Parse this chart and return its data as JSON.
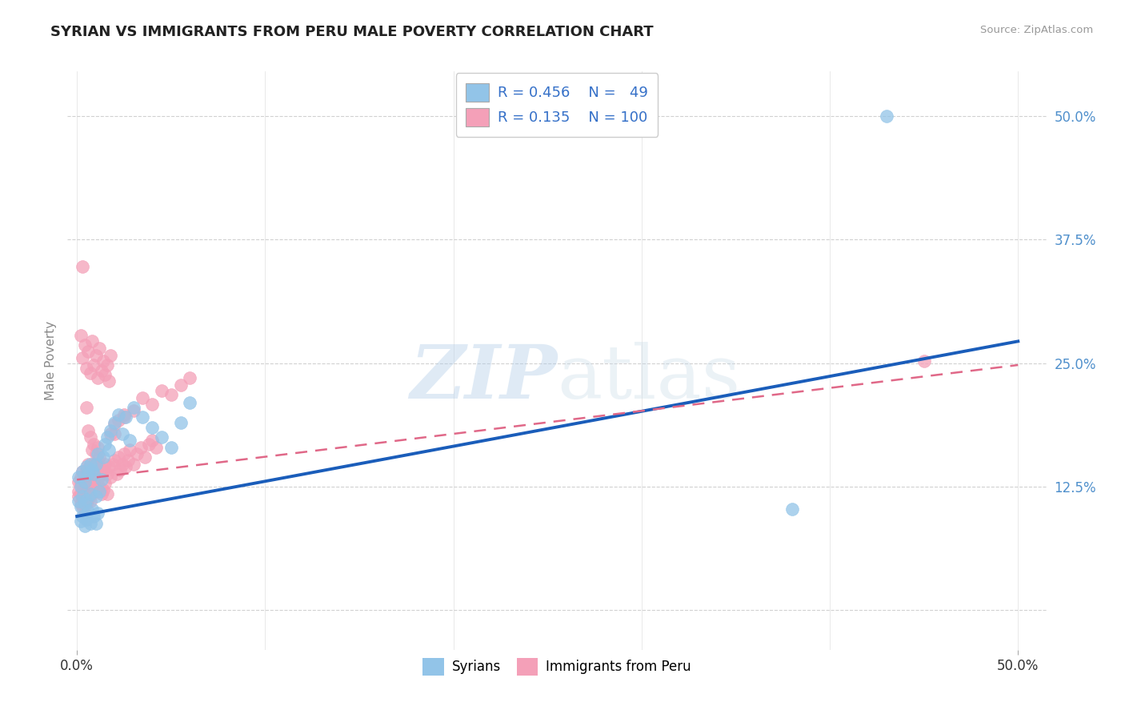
{
  "title": "SYRIAN VS IMMIGRANTS FROM PERU MALE POVERTY CORRELATION CHART",
  "source": "Source: ZipAtlas.com",
  "ylabel": "Male Poverty",
  "y_tick_values": [
    0.0,
    0.125,
    0.25,
    0.375,
    0.5
  ],
  "y_tick_labels": [
    "",
    "12.5%",
    "25.0%",
    "37.5%",
    "50.0%"
  ],
  "x_tick_values": [
    0.0,
    0.1,
    0.2,
    0.3,
    0.4,
    0.5
  ],
  "xlim": [
    -0.005,
    0.515
  ],
  "ylim": [
    -0.04,
    0.545
  ],
  "watermark_zip": "ZIP",
  "watermark_atlas": "atlas",
  "R_syrian": "0.456",
  "N_syrian": "49",
  "R_peru": "0.135",
  "N_peru": "100",
  "syrians_color": "#92c4e8",
  "peru_color": "#f4a0b8",
  "trend_blue_color": "#1a5dba",
  "trend_pink_color": "#e06888",
  "background_color": "#ffffff",
  "grid_color": "#cccccc",
  "legend_text_color": "#3570c8",
  "right_axis_color": "#5090cc",
  "blue_line_x0": 0.0,
  "blue_line_y0": 0.095,
  "blue_line_x1": 0.5,
  "blue_line_y1": 0.272,
  "pink_line_x0": 0.0,
  "pink_line_y0": 0.132,
  "pink_line_x1": 0.5,
  "pink_line_y1": 0.248,
  "syrians_x": [
    0.001,
    0.001,
    0.002,
    0.002,
    0.002,
    0.003,
    0.003,
    0.003,
    0.004,
    0.004,
    0.004,
    0.005,
    0.005,
    0.005,
    0.006,
    0.006,
    0.007,
    0.007,
    0.007,
    0.008,
    0.008,
    0.009,
    0.009,
    0.01,
    0.01,
    0.01,
    0.011,
    0.011,
    0.012,
    0.013,
    0.014,
    0.015,
    0.016,
    0.017,
    0.018,
    0.02,
    0.022,
    0.024,
    0.026,
    0.028,
    0.03,
    0.035,
    0.04,
    0.045,
    0.05,
    0.055,
    0.06,
    0.38,
    0.43
  ],
  "syrians_y": [
    0.135,
    0.11,
    0.125,
    0.105,
    0.09,
    0.14,
    0.115,
    0.095,
    0.13,
    0.108,
    0.085,
    0.145,
    0.112,
    0.092,
    0.138,
    0.1,
    0.148,
    0.118,
    0.088,
    0.142,
    0.102,
    0.138,
    0.095,
    0.148,
    0.115,
    0.088,
    0.158,
    0.098,
    0.12,
    0.132,
    0.155,
    0.168,
    0.175,
    0.162,
    0.182,
    0.19,
    0.198,
    0.178,
    0.195,
    0.172,
    0.205,
    0.195,
    0.185,
    0.175,
    0.165,
    0.19,
    0.21,
    0.102,
    0.5
  ],
  "peru_x": [
    0.001,
    0.001,
    0.001,
    0.002,
    0.002,
    0.002,
    0.002,
    0.003,
    0.003,
    0.003,
    0.003,
    0.004,
    0.004,
    0.004,
    0.005,
    0.005,
    0.005,
    0.006,
    0.006,
    0.006,
    0.007,
    0.007,
    0.007,
    0.008,
    0.008,
    0.009,
    0.009,
    0.01,
    0.01,
    0.011,
    0.011,
    0.012,
    0.012,
    0.013,
    0.013,
    0.014,
    0.014,
    0.015,
    0.015,
    0.016,
    0.016,
    0.017,
    0.018,
    0.019,
    0.02,
    0.021,
    0.022,
    0.023,
    0.024,
    0.025,
    0.026,
    0.027,
    0.028,
    0.03,
    0.032,
    0.034,
    0.036,
    0.038,
    0.04,
    0.042,
    0.002,
    0.003,
    0.004,
    0.005,
    0.006,
    0.007,
    0.008,
    0.009,
    0.01,
    0.011,
    0.012,
    0.013,
    0.014,
    0.015,
    0.016,
    0.017,
    0.018,
    0.02,
    0.022,
    0.025,
    0.005,
    0.006,
    0.007,
    0.008,
    0.009,
    0.01,
    0.011,
    0.012,
    0.018,
    0.02,
    0.025,
    0.03,
    0.035,
    0.04,
    0.045,
    0.05,
    0.055,
    0.06,
    0.45,
    0.003
  ],
  "peru_y": [
    0.13,
    0.12,
    0.115,
    0.135,
    0.118,
    0.108,
    0.128,
    0.14,
    0.122,
    0.112,
    0.105,
    0.132,
    0.115,
    0.098,
    0.142,
    0.125,
    0.108,
    0.148,
    0.13,
    0.112,
    0.145,
    0.128,
    0.11,
    0.138,
    0.118,
    0.148,
    0.128,
    0.142,
    0.122,
    0.152,
    0.132,
    0.145,
    0.125,
    0.138,
    0.118,
    0.142,
    0.122,
    0.148,
    0.128,
    0.138,
    0.118,
    0.145,
    0.135,
    0.148,
    0.152,
    0.138,
    0.155,
    0.142,
    0.148,
    0.158,
    0.145,
    0.152,
    0.162,
    0.148,
    0.158,
    0.165,
    0.155,
    0.168,
    0.172,
    0.165,
    0.278,
    0.255,
    0.268,
    0.245,
    0.262,
    0.24,
    0.272,
    0.248,
    0.258,
    0.235,
    0.265,
    0.242,
    0.252,
    0.238,
    0.248,
    0.232,
    0.258,
    0.178,
    0.192,
    0.198,
    0.205,
    0.182,
    0.175,
    0.162,
    0.168,
    0.158,
    0.165,
    0.155,
    0.178,
    0.188,
    0.195,
    0.202,
    0.215,
    0.208,
    0.222,
    0.218,
    0.228,
    0.235,
    0.252,
    0.348
  ]
}
